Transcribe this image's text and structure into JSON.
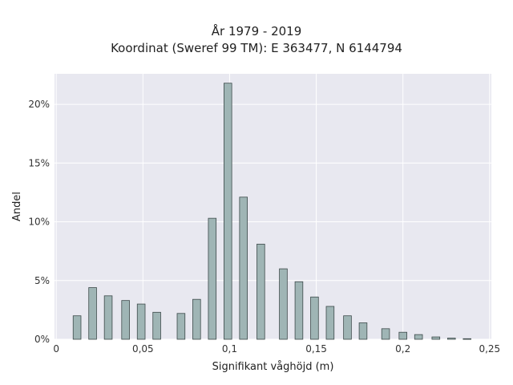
{
  "chart_data": {
    "type": "bar",
    "title_line1": "År 1979 - 2019",
    "title_line2": "Koordinat (Sweref 99 TM): E 363477, N 6144794",
    "xlabel": "Signifikant våghöjd (m)",
    "ylabel": "Andel",
    "xlim": [
      -0.001,
      0.251
    ],
    "ylim": [
      0,
      22.6
    ],
    "x_ticks": [
      {
        "value": 0,
        "label": "0"
      },
      {
        "value": 0.05,
        "label": "0,05"
      },
      {
        "value": 0.1,
        "label": "0,1"
      },
      {
        "value": 0.15,
        "label": "0,15"
      },
      {
        "value": 0.2,
        "label": "0,2"
      },
      {
        "value": 0.25,
        "label": "0,25"
      }
    ],
    "y_ticks": [
      {
        "value": 0,
        "label": "0%"
      },
      {
        "value": 5,
        "label": "5%"
      },
      {
        "value": 10,
        "label": "10%"
      },
      {
        "value": 15,
        "label": "15%"
      },
      {
        "value": 20,
        "label": "20%"
      }
    ],
    "grid": true,
    "bar_width": 0.0045,
    "bar_color": "#9fb5b5",
    "bar_edge": "#3d4a4a",
    "plot_bg": "#e8e8f0",
    "x": [
      0.012,
      0.021,
      0.03,
      0.04,
      0.049,
      0.058,
      0.072,
      0.081,
      0.09,
      0.099,
      0.108,
      0.118,
      0.131,
      0.14,
      0.149,
      0.158,
      0.168,
      0.177,
      0.19,
      0.2,
      0.209,
      0.219,
      0.228,
      0.237
    ],
    "values": [
      2.0,
      4.4,
      3.7,
      3.3,
      3.0,
      2.3,
      2.2,
      3.4,
      10.3,
      21.8,
      12.1,
      8.1,
      6.0,
      4.9,
      3.6,
      2.8,
      2.0,
      1.4,
      0.9,
      0.6,
      0.4,
      0.2,
      0.1,
      0.05
    ]
  }
}
